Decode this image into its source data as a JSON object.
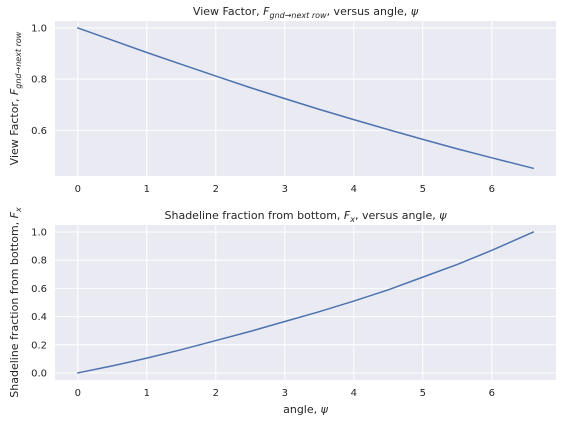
{
  "chart_data": [
    {
      "type": "line",
      "title": "View Factor, F_{gnd→next row}, versus angle, ψ",
      "title_parts": {
        "pre": "View Factor, ",
        "sym": "F",
        "sub": "gnd→next row",
        "post": ", versus angle, ",
        "var": "ψ"
      },
      "xlabel": "",
      "ylabel": "View Factor, F_{gnd→next row}",
      "ylabel_parts": {
        "pre": "View Factor, ",
        "sym": "F",
        "sub": "gnd→next row"
      },
      "xlim": [
        -0.33,
        6.93
      ],
      "ylim": [
        0.422,
        1.027
      ],
      "xticks": [
        "0",
        "1",
        "2",
        "3",
        "4",
        "5",
        "6"
      ],
      "yticks": [
        "0.6",
        "0.8",
        "1.0"
      ],
      "grid": true,
      "series": [
        {
          "color": "#4c72b0",
          "x": [
            0,
            0.5,
            1,
            1.5,
            2,
            2.5,
            3,
            3.5,
            4,
            4.5,
            5,
            5.5,
            6,
            6.6
          ],
          "y": [
            1.0,
            0.952,
            0.904,
            0.858,
            0.812,
            0.767,
            0.724,
            0.682,
            0.642,
            0.603,
            0.565,
            0.528,
            0.493,
            0.452
          ]
        }
      ]
    },
    {
      "type": "line",
      "title": "Shadeline fraction from bottom, F_x, versus angle, ψ",
      "title_parts": {
        "pre": "Shadeline fraction from bottom, ",
        "sym": "F",
        "sub": "x",
        "post": ", versus angle, ",
        "var": "ψ"
      },
      "xlabel": "angle, ψ",
      "xlabel_parts": {
        "pre": "angle, ",
        "var": "ψ"
      },
      "ylabel": "Shadeline fraction from bottom, F_x",
      "ylabel_parts": {
        "pre": "Shadeline fraction from bottom, ",
        "sym": "F",
        "sub": "x"
      },
      "xlim": [
        -0.33,
        6.93
      ],
      "ylim": [
        -0.05,
        1.05
      ],
      "xticks": [
        "0",
        "1",
        "2",
        "3",
        "4",
        "5",
        "6"
      ],
      "yticks": [
        "0.0",
        "0.2",
        "0.4",
        "0.6",
        "0.8",
        "1.0"
      ],
      "grid": true,
      "series": [
        {
          "color": "#4c72b0",
          "x": [
            0,
            0.5,
            1,
            1.5,
            2,
            2.5,
            3,
            3.5,
            4,
            4.5,
            5,
            5.5,
            6,
            6.6
          ],
          "y": [
            0.0,
            0.05,
            0.105,
            0.165,
            0.23,
            0.295,
            0.365,
            0.435,
            0.51,
            0.59,
            0.68,
            0.77,
            0.87,
            1.0
          ]
        }
      ]
    }
  ]
}
